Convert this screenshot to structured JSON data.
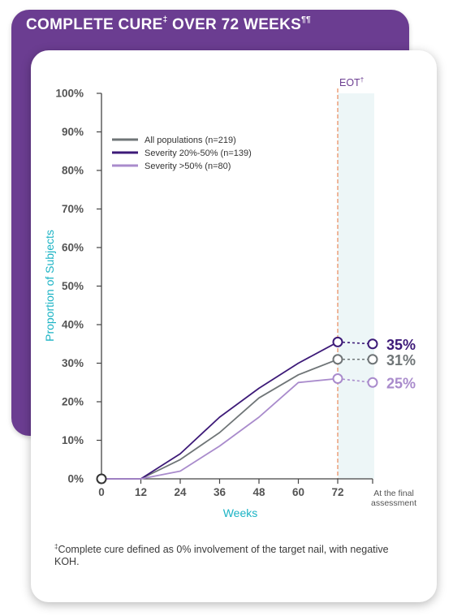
{
  "colors": {
    "purple_dark": "#3d1a78",
    "grey": "#6f7577",
    "lavender": "#a98bcc",
    "teal": "#1bb3c4",
    "banner": "#6b3d91",
    "eot_line": "#e8885a",
    "eot_band": "#edf6f7"
  },
  "header": {
    "title": "COMPLETE CURE",
    "title_sup": "‡",
    "title_rest": " OVER 72 WEEKS",
    "title_sup2": "¶¶"
  },
  "footnote": {
    "mark": "‡",
    "text": "Complete cure defined as 0% involvement of the target nail, with negative KOH."
  },
  "chart_data": {
    "type": "line",
    "xlabel": "Weeks",
    "ylabel": "Proportion of Subjects",
    "x_ticks": [
      "0",
      "12",
      "24",
      "36",
      "48",
      "60",
      "72"
    ],
    "x_final_label": [
      "At the final",
      "assessment"
    ],
    "y_ticks": [
      "0%",
      "10%",
      "20%",
      "30%",
      "40%",
      "50%",
      "60%",
      "70%",
      "80%",
      "90%",
      "100%"
    ],
    "ylim": [
      0,
      100
    ],
    "xlim": [
      0,
      84
    ],
    "eot_label": "EOT",
    "eot_sup": "†",
    "eot_week": 72,
    "grid": false,
    "legend_position": "top-left",
    "series": [
      {
        "name": "All populations (n=219)",
        "color": "#6f7577",
        "x": [
          0,
          12,
          24,
          36,
          48,
          60,
          72
        ],
        "values": [
          0,
          0,
          5,
          12,
          21,
          27,
          31
        ],
        "final": 31,
        "final_label": "31%"
      },
      {
        "name": "Severity 20%-50% (n=139)",
        "color": "#3d1a78",
        "x": [
          0,
          12,
          24,
          36,
          48,
          60,
          72
        ],
        "values": [
          0,
          0,
          6.5,
          16,
          23.5,
          30,
          35.5
        ],
        "final": 35,
        "final_label": "35%"
      },
      {
        "name": "Severity >50% (n=80)",
        "color": "#a98bcc",
        "x": [
          0,
          12,
          24,
          36,
          48,
          60,
          72
        ],
        "values": [
          0,
          0,
          2,
          8.5,
          16,
          25,
          26
        ],
        "final": 25,
        "final_label": "25%"
      }
    ]
  }
}
